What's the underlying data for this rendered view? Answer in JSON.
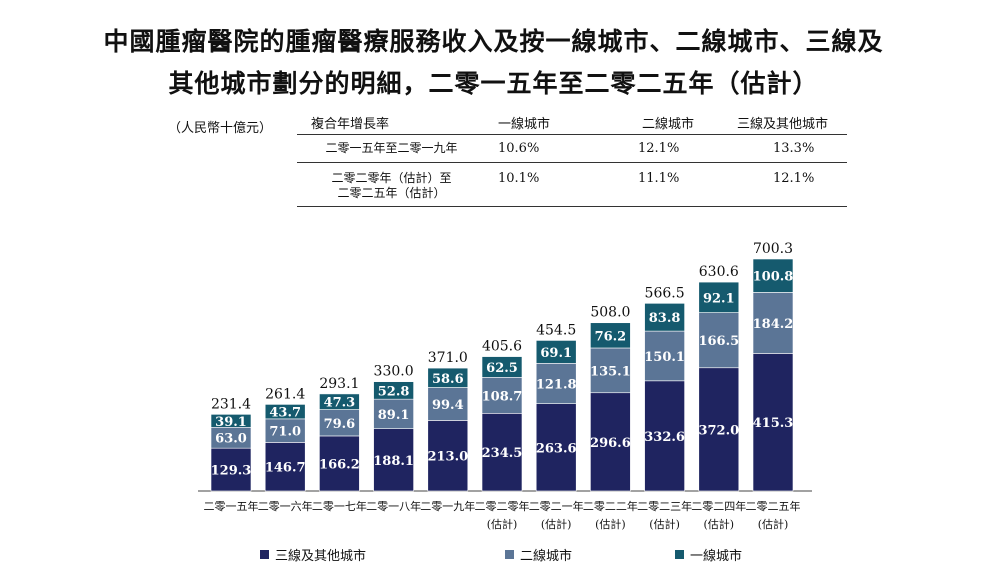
{
  "title_line1": "中國腫瘤醫院的腫瘤醫療服務收入及按一線城市、二線城市、三線及",
  "title_line2": "其他城市劃分的明細，二零一五年至二零二五年（估計）",
  "unit": "（人民幣十億元）",
  "cagr_table": {
    "header": [
      "複合年增長率",
      "一線城市",
      "二線城市",
      "三線及其他城市"
    ],
    "rows": [
      {
        "period": "二零一五年至二零一九年",
        "period_line2": "",
        "tier1": "10.6%",
        "tier2": "12.1%",
        "tier3": "13.3%"
      },
      {
        "period": "二零二零年（估計）至",
        "period_line2": "二零二五年（估計）",
        "tier1": "10.1%",
        "tier2": "11.1%",
        "tier3": "12.1%"
      }
    ]
  },
  "colors": {
    "tier3": "#1f2460",
    "tier2": "#5b7596",
    "tier1": "#155a6e"
  },
  "chart_data": {
    "type": "bar",
    "stacked": true,
    "categories": [
      [
        "二零一五年",
        ""
      ],
      [
        "二零一六年",
        ""
      ],
      [
        "二零一七年",
        ""
      ],
      [
        "二零一八年",
        ""
      ],
      [
        "二零一九年",
        ""
      ],
      [
        "二零二零年",
        "(估計)"
      ],
      [
        "二零二一年",
        "(估計)"
      ],
      [
        "二零二二年",
        "(估計)"
      ],
      [
        "二零二三年",
        "(估計)"
      ],
      [
        "二零二四年",
        "(估計)"
      ],
      [
        "二零二五年",
        "(估計)"
      ]
    ],
    "series": [
      {
        "name": "三線及其他城市",
        "key": "tier3",
        "values": [
          129.3,
          146.7,
          166.2,
          188.1,
          213.0,
          234.5,
          263.6,
          296.6,
          332.6,
          372.0,
          415.3
        ],
        "labels": [
          "129.3",
          "146.7",
          "166.2",
          "188.1",
          "213.0",
          "234.5",
          "263.6",
          "296.6",
          "332.6",
          "372.0",
          "415.3"
        ]
      },
      {
        "name": "二線城市",
        "key": "tier2",
        "values": [
          63.0,
          71.0,
          79.6,
          89.1,
          99.4,
          108.7,
          121.8,
          135.1,
          150.1,
          166.5,
          184.2
        ],
        "labels": [
          "63.0",
          "71.0",
          "79.6",
          "89.1",
          "99.4",
          "108.7",
          "121.8",
          "135.1",
          "150.1",
          "166.5",
          "184.2"
        ]
      },
      {
        "name": "一線城市",
        "key": "tier1",
        "values": [
          39.1,
          43.7,
          47.3,
          52.8,
          58.6,
          62.5,
          69.1,
          76.2,
          83.8,
          92.1,
          100.8
        ],
        "labels": [
          "39.1",
          "43.7",
          "47.3",
          "52.8",
          "58.6",
          "62.5",
          "69.1",
          "76.2",
          "83.8",
          "92.1",
          "100.8"
        ]
      }
    ],
    "totals": [
      "231.4",
      "261.4",
      "293.1",
      "330.0",
      "371.0",
      "405.6",
      "454.5",
      "508.0",
      "566.5",
      "630.6",
      "700.3"
    ],
    "ylim": [
      0,
      700.3
    ],
    "legend_position": "bottom"
  }
}
